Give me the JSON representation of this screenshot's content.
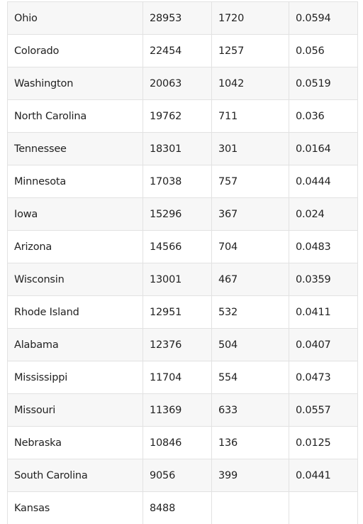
{
  "table": {
    "rows": [
      {
        "state": "Ohio",
        "cases": "28953",
        "deaths": "1720",
        "rate": "0.0594"
      },
      {
        "state": "Colorado",
        "cases": "22454",
        "deaths": "1257",
        "rate": "0.056"
      },
      {
        "state": "Washington",
        "cases": "20063",
        "deaths": "1042",
        "rate": "0.0519"
      },
      {
        "state": "North Carolina",
        "cases": "19762",
        "deaths": "711",
        "rate": "0.036"
      },
      {
        "state": "Tennessee",
        "cases": "18301",
        "deaths": "301",
        "rate": "0.0164"
      },
      {
        "state": "Minnesota",
        "cases": "17038",
        "deaths": "757",
        "rate": "0.0444"
      },
      {
        "state": "Iowa",
        "cases": "15296",
        "deaths": "367",
        "rate": "0.024"
      },
      {
        "state": "Arizona",
        "cases": "14566",
        "deaths": "704",
        "rate": "0.0483"
      },
      {
        "state": "Wisconsin",
        "cases": "13001",
        "deaths": "467",
        "rate": "0.0359"
      },
      {
        "state": "Rhode Island",
        "cases": "12951",
        "deaths": "532",
        "rate": "0.0411"
      },
      {
        "state": "Alabama",
        "cases": "12376",
        "deaths": "504",
        "rate": "0.0407"
      },
      {
        "state": "Mississippi",
        "cases": "11704",
        "deaths": "554",
        "rate": "0.0473"
      },
      {
        "state": "Missouri",
        "cases": "11369",
        "deaths": "633",
        "rate": "0.0557"
      },
      {
        "state": "Nebraska",
        "cases": "10846",
        "deaths": "136",
        "rate": "0.0125"
      },
      {
        "state": "South Carolina",
        "cases": "9056",
        "deaths": "399",
        "rate": "0.0441"
      },
      {
        "state": "Kansas",
        "cases": "8488",
        "deaths": "",
        "rate": ""
      }
    ]
  }
}
